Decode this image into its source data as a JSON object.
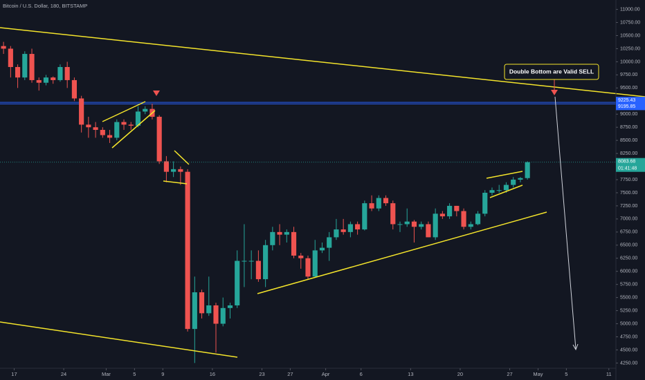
{
  "chart_data": {
    "type": "candlestick",
    "title": "Bitcoin / U.S. Dollar, 180, BITSTAMP",
    "annotation": "Double Bottom are Valid SELL",
    "up_color": "#26a69a",
    "down_color": "#ef5350",
    "xlim": [
      "Feb 15",
      "May 12"
    ],
    "xticks": [
      {
        "value": "Feb 17",
        "label": "17"
      },
      {
        "value": "Feb 24",
        "label": "24"
      },
      {
        "value": "Mar 1",
        "label": "Mar"
      },
      {
        "value": "Mar 5",
        "label": "5"
      },
      {
        "value": "Mar 9",
        "label": "9"
      },
      {
        "value": "Mar 16",
        "label": "16"
      },
      {
        "value": "Mar 23",
        "label": "23"
      },
      {
        "value": "Mar 27",
        "label": "27"
      },
      {
        "value": "Apr 1",
        "label": "Apr"
      },
      {
        "value": "Apr 6",
        "label": "6"
      },
      {
        "value": "Apr 13",
        "label": "13"
      },
      {
        "value": "Apr 20",
        "label": "20"
      },
      {
        "value": "Apr 27",
        "label": "27"
      },
      {
        "value": "May 1",
        "label": "May"
      },
      {
        "value": "May 5",
        "label": "5"
      },
      {
        "value": "May 11",
        "label": "11"
      }
    ],
    "ylim": [
      4150,
      11100
    ],
    "yticks": [
      {
        "value": 4250,
        "label": "4250.00"
      },
      {
        "value": 4500,
        "label": "4500.00"
      },
      {
        "value": 4750,
        "label": "4750.00"
      },
      {
        "value": 5000,
        "label": "5000.00"
      },
      {
        "value": 5250,
        "label": "5250.00"
      },
      {
        "value": 5500,
        "label": "5500.00"
      },
      {
        "value": 5750,
        "label": "5750.00"
      },
      {
        "value": 6000,
        "label": "6000.00"
      },
      {
        "value": 6250,
        "label": "6250.00"
      },
      {
        "value": 6500,
        "label": "6500.00"
      },
      {
        "value": 6750,
        "label": "6750.00"
      },
      {
        "value": 7000,
        "label": "7000.00"
      },
      {
        "value": 7250,
        "label": "7250.00"
      },
      {
        "value": 7500,
        "label": "7500.00"
      },
      {
        "value": 7750,
        "label": "7750.00"
      },
      {
        "value": 8000,
        "label": "8000.00"
      },
      {
        "value": 8250,
        "label": "8250.00"
      },
      {
        "value": 8500,
        "label": "8500.00"
      },
      {
        "value": 8750,
        "label": "8750.00"
      },
      {
        "value": 9000,
        "label": "9000.00"
      },
      {
        "value": 9250,
        "label": "9250.00"
      },
      {
        "value": 9500,
        "label": "9500.00"
      },
      {
        "value": 9750,
        "label": "9750.00"
      },
      {
        "value": 10000,
        "label": "10000.00"
      },
      {
        "value": 10250,
        "label": "10250.00"
      },
      {
        "value": 10500,
        "label": "10500.00"
      },
      {
        "value": 10750,
        "label": "10750.00"
      },
      {
        "value": 11000,
        "label": "11000.00"
      }
    ],
    "price_lines": [
      9225.43,
      9195.85
    ],
    "last_price": 8083.68,
    "countdown": "01:41:48",
    "x": [
      "Feb 15",
      "Feb 16",
      "Feb 17",
      "Feb 18",
      "Feb 19",
      "Feb 20",
      "Feb 21",
      "Feb 22",
      "Feb 23",
      "Feb 24",
      "Feb 25",
      "Feb 26",
      "Feb 27",
      "Feb 28",
      "Feb 29",
      "Mar 1",
      "Mar 2",
      "Mar 3",
      "Mar 4",
      "Mar 5",
      "Mar 6",
      "Mar 7",
      "Mar 8",
      "Mar 9",
      "Mar 10",
      "Mar 11",
      "Mar 12",
      "Mar 13",
      "Mar 14",
      "Mar 15",
      "Mar 16",
      "Mar 17",
      "Mar 18",
      "Mar 19",
      "Mar 20",
      "Mar 21",
      "Mar 22",
      "Mar 23",
      "Mar 24",
      "Mar 25",
      "Mar 26",
      "Mar 27",
      "Mar 28",
      "Mar 29",
      "Mar 30",
      "Mar 31",
      "Apr 1",
      "Apr 2",
      "Apr 3",
      "Apr 4",
      "Apr 5",
      "Apr 6",
      "Apr 7",
      "Apr 8",
      "Apr 9",
      "Apr 10",
      "Apr 11",
      "Apr 12",
      "Apr 13",
      "Apr 14",
      "Apr 15",
      "Apr 16",
      "Apr 17",
      "Apr 18",
      "Apr 19",
      "Apr 20",
      "Apr 21",
      "Apr 22",
      "Apr 23",
      "Apr 24",
      "Apr 25",
      "Apr 26",
      "Apr 27",
      "Apr 28",
      "Apr 29"
    ],
    "open": [
      10300,
      10250,
      9900,
      9700,
      10150,
      9650,
      9600,
      9700,
      9650,
      9900,
      9650,
      9300,
      8800,
      8750,
      8700,
      8600,
      8550,
      8850,
      8800,
      8780,
      9050,
      9100,
      8950,
      8100,
      7900,
      7950,
      7900,
      4900,
      5600,
      5200,
      5350,
      5000,
      5300,
      5350,
      6200,
      6200,
      6200,
      5850,
      6500,
      6750,
      6700,
      6750,
      6300,
      6250,
      5900,
      6400,
      6450,
      6650,
      6800,
      6750,
      6900,
      6800,
      7300,
      7200,
      7400,
      7300,
      6900,
      6900,
      6950,
      6850,
      6900,
      6650,
      7100,
      7050,
      7250,
      7150,
      6850,
      6900,
      7100,
      7500,
      7550,
      7550,
      7650,
      7750,
      7780
    ],
    "high": [
      10380,
      10300,
      9950,
      10200,
      10250,
      9700,
      9750,
      9720,
      9950,
      10000,
      9700,
      9350,
      8950,
      8850,
      8750,
      8700,
      8900,
      8900,
      8850,
      9150,
      9150,
      9200,
      8980,
      8200,
      8100,
      8000,
      7950,
      5900,
      5650,
      5900,
      5400,
      5500,
      5400,
      6400,
      6900,
      6400,
      6400,
      6600,
      6850,
      6900,
      6800,
      6850,
      6350,
      6300,
      6600,
      6550,
      6750,
      7000,
      7000,
      6950,
      6950,
      7350,
      7450,
      7450,
      7450,
      7350,
      6950,
      7200,
      6980,
      6950,
      6950,
      7200,
      7150,
      7300,
      7250,
      7200,
      6950,
      7150,
      7550,
      7600,
      7650,
      7700,
      7800,
      7800,
      8100
    ],
    "low": [
      10150,
      9700,
      9500,
      9650,
      9600,
      9450,
      9550,
      9580,
      9620,
      9500,
      9250,
      8650,
      8550,
      8550,
      8550,
      8450,
      8500,
      8700,
      8700,
      8750,
      9000,
      8900,
      8050,
      7700,
      7800,
      7650,
      4850,
      4250,
      5100,
      5150,
      4450,
      4950,
      5100,
      5300,
      5700,
      5850,
      5800,
      5700,
      6400,
      6500,
      6550,
      6250,
      6050,
      5850,
      5880,
      6350,
      6200,
      6600,
      6700,
      6650,
      6700,
      6780,
      7150,
      7150,
      7250,
      6800,
      6750,
      6850,
      6550,
      6800,
      6650,
      6600,
      7000,
      7000,
      7050,
      6800,
      6800,
      6880,
      7050,
      7450,
      7500,
      7500,
      7600,
      7700,
      7750
    ],
    "close": [
      10250,
      9900,
      9700,
      10150,
      9650,
      9600,
      9700,
      9650,
      9900,
      9650,
      9300,
      8800,
      8750,
      8700,
      8600,
      8550,
      8850,
      8800,
      8780,
      9050,
      9100,
      8950,
      8100,
      7900,
      7950,
      7900,
      4900,
      5600,
      5200,
      5350,
      5000,
      5300,
      5350,
      6200,
      6200,
      6200,
      5850,
      6500,
      6750,
      6700,
      6750,
      6300,
      6250,
      5900,
      6400,
      6450,
      6650,
      6800,
      6750,
      6900,
      6800,
      7300,
      7200,
      7400,
      7300,
      6900,
      6900,
      6950,
      6850,
      6900,
      6650,
      7100,
      7050,
      7250,
      7150,
      6850,
      6900,
      7100,
      7500,
      7550,
      7550,
      7650,
      7750,
      7780,
      8083.68
    ]
  }
}
